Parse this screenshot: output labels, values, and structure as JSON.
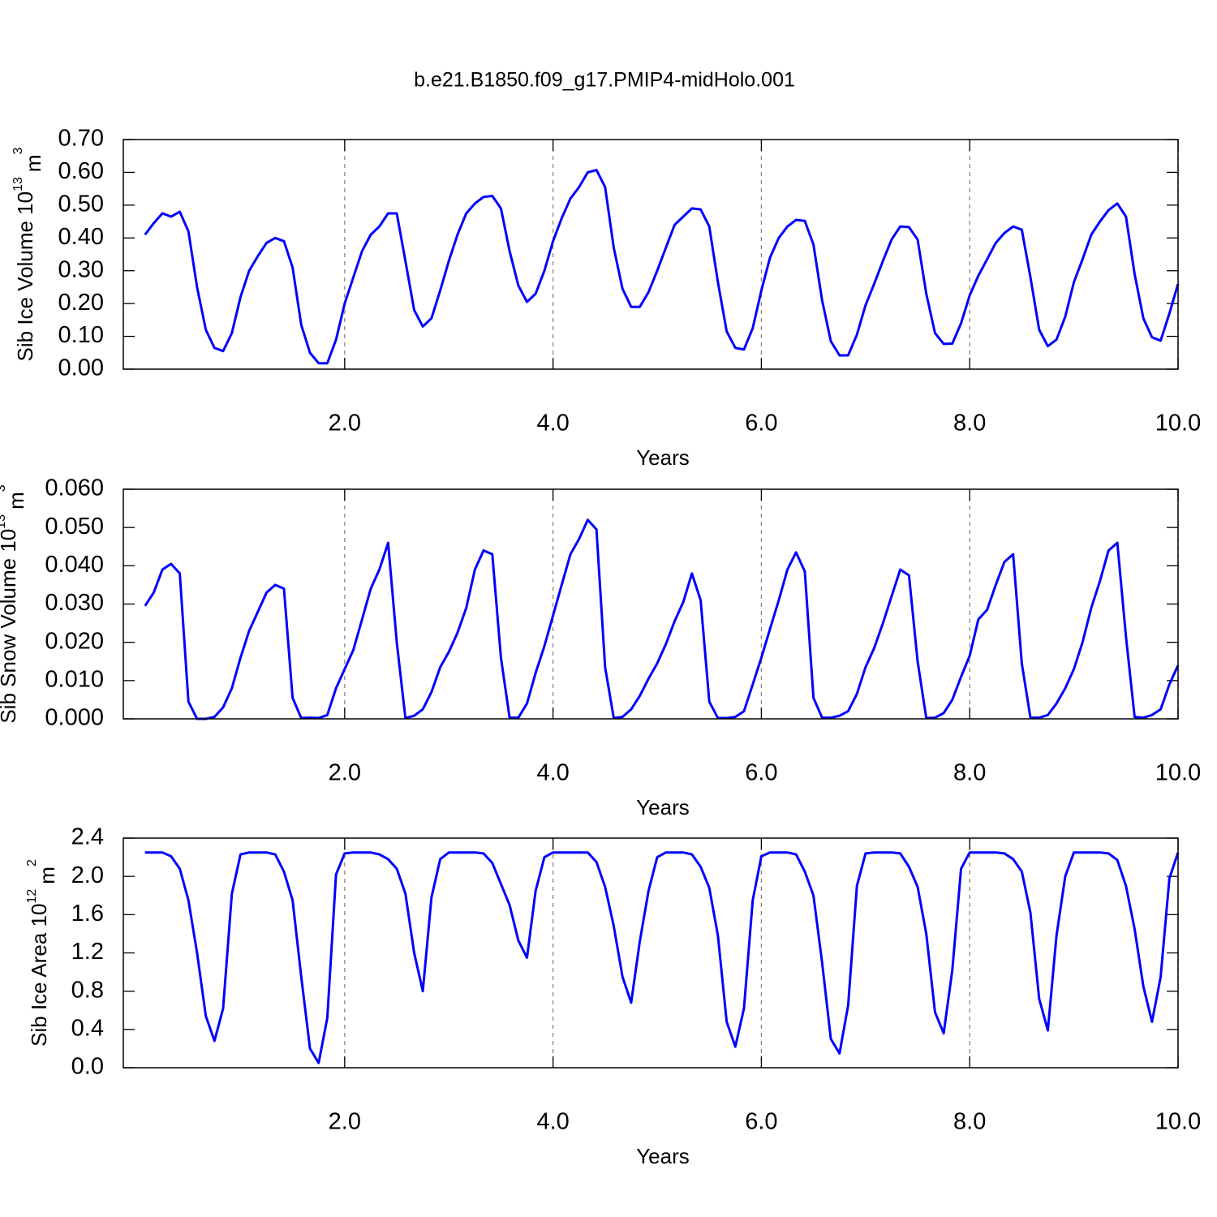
{
  "title": "b.e21.B1850.f09_g17.PMIP4-midHolo.001",
  "chart_data": [
    {
      "type": "line",
      "ylabel": "Sib Ice Volume 10",
      "ylabel_exponent": "13",
      "ylabel_unit": "m",
      "ylabel_unit_exponent": "3",
      "xlabel": "Years",
      "xlim": [
        -0.125,
        10
      ],
      "ylim": [
        0,
        0.7
      ],
      "xticks": [
        {
          "value": 2,
          "label": "2.0"
        },
        {
          "value": 4,
          "label": "4.0"
        },
        {
          "value": 6,
          "label": "6.0"
        },
        {
          "value": 8,
          "label": "8.0"
        },
        {
          "value": 10,
          "label": "10.0"
        }
      ],
      "yticks": [
        {
          "value": 0,
          "label": "0.00"
        },
        {
          "value": 0.1,
          "label": "0.10"
        },
        {
          "value": 0.2,
          "label": "0.20"
        },
        {
          "value": 0.3,
          "label": "0.30"
        },
        {
          "value": 0.4,
          "label": "0.40"
        },
        {
          "value": 0.5,
          "label": "0.50"
        },
        {
          "value": 0.6,
          "label": "0.60"
        },
        {
          "value": 0.7,
          "label": "0.70"
        }
      ],
      "grid": true,
      "x": [
        0.083,
        0.167,
        0.25,
        0.333,
        0.417,
        0.5,
        0.583,
        0.667,
        0.75,
        0.833,
        0.917,
        1,
        1.083,
        1.167,
        1.25,
        1.333,
        1.417,
        1.5,
        1.583,
        1.667,
        1.75,
        1.833,
        1.917,
        2,
        2.083,
        2.167,
        2.25,
        2.333,
        2.417,
        2.5,
        2.583,
        2.667,
        2.75,
        2.833,
        2.917,
        3,
        3.083,
        3.167,
        3.25,
        3.333,
        3.417,
        3.5,
        3.583,
        3.667,
        3.75,
        3.833,
        3.917,
        4,
        4.083,
        4.167,
        4.25,
        4.333,
        4.417,
        4.5,
        4.583,
        4.667,
        4.75,
        4.833,
        4.917,
        5,
        5.083,
        5.167,
        5.25,
        5.333,
        5.417,
        5.5,
        5.583,
        5.667,
        5.75,
        5.833,
        5.917,
        6,
        6.083,
        6.167,
        6.25,
        6.333,
        6.417,
        6.5,
        6.583,
        6.667,
        6.75,
        6.833,
        6.917,
        7,
        7.083,
        7.167,
        7.25,
        7.333,
        7.417,
        7.5,
        7.583,
        7.667,
        7.75,
        7.833,
        7.917,
        8,
        8.083,
        8.167,
        8.25,
        8.333,
        8.417,
        8.5,
        8.583,
        8.667,
        8.75,
        8.833,
        8.917,
        9,
        9.083,
        9.167,
        9.25,
        9.333,
        9.417,
        9.5,
        9.583,
        9.667,
        9.75,
        9.833,
        9.917,
        10
      ],
      "series": [
        {
          "color": "#0000ff",
          "values": [
            0.41,
            0.445,
            0.475,
            0.465,
            0.48,
            0.42,
            0.25,
            0.12,
            0.065,
            0.055,
            0.11,
            0.22,
            0.3,
            0.345,
            0.385,
            0.4,
            0.39,
            0.31,
            0.135,
            0.05,
            0.018,
            0.018,
            0.09,
            0.2,
            0.28,
            0.36,
            0.41,
            0.435,
            0.475,
            0.475,
            0.33,
            0.18,
            0.13,
            0.155,
            0.24,
            0.33,
            0.41,
            0.475,
            0.505,
            0.525,
            0.528,
            0.49,
            0.36,
            0.255,
            0.205,
            0.23,
            0.3,
            0.39,
            0.46,
            0.52,
            0.555,
            0.6,
            0.607,
            0.555,
            0.37,
            0.245,
            0.19,
            0.19,
            0.235,
            0.3,
            0.37,
            0.44,
            0.465,
            0.49,
            0.487,
            0.435,
            0.265,
            0.115,
            0.065,
            0.06,
            0.125,
            0.24,
            0.34,
            0.4,
            0.435,
            0.455,
            0.452,
            0.38,
            0.21,
            0.085,
            0.042,
            0.042,
            0.105,
            0.195,
            0.26,
            0.33,
            0.395,
            0.435,
            0.433,
            0.395,
            0.23,
            0.11,
            0.077,
            0.078,
            0.14,
            0.225,
            0.285,
            0.335,
            0.385,
            0.415,
            0.435,
            0.425,
            0.28,
            0.12,
            0.07,
            0.09,
            0.16,
            0.265,
            0.335,
            0.41,
            0.45,
            0.485,
            0.505,
            0.465,
            0.29,
            0.155,
            0.097,
            0.087,
            0.17,
            0.26
          ]
        }
      ]
    },
    {
      "type": "line",
      "ylabel": "Sib Snow Volume 10",
      "ylabel_exponent": "13",
      "ylabel_unit": "m",
      "ylabel_unit_exponent": "3",
      "xlabel": "Years",
      "xlim": [
        -0.125,
        10
      ],
      "ylim": [
        0,
        0.06
      ],
      "xticks": [
        {
          "value": 2,
          "label": "2.0"
        },
        {
          "value": 4,
          "label": "4.0"
        },
        {
          "value": 6,
          "label": "6.0"
        },
        {
          "value": 8,
          "label": "8.0"
        },
        {
          "value": 10,
          "label": "10.0"
        }
      ],
      "yticks": [
        {
          "value": 0,
          "label": "0.000"
        },
        {
          "value": 0.01,
          "label": "0.010"
        },
        {
          "value": 0.02,
          "label": "0.020"
        },
        {
          "value": 0.03,
          "label": "0.030"
        },
        {
          "value": 0.04,
          "label": "0.040"
        },
        {
          "value": 0.05,
          "label": "0.050"
        },
        {
          "value": 0.06,
          "label": "0.060"
        }
      ],
      "grid": true,
      "x": [
        0.083,
        0.167,
        0.25,
        0.333,
        0.417,
        0.5,
        0.583,
        0.667,
        0.75,
        0.833,
        0.917,
        1,
        1.083,
        1.167,
        1.25,
        1.333,
        1.417,
        1.5,
        1.583,
        1.667,
        1.75,
        1.833,
        1.917,
        2,
        2.083,
        2.167,
        2.25,
        2.333,
        2.417,
        2.5,
        2.583,
        2.667,
        2.75,
        2.833,
        2.917,
        3,
        3.083,
        3.167,
        3.25,
        3.333,
        3.417,
        3.5,
        3.583,
        3.667,
        3.75,
        3.833,
        3.917,
        4,
        4.083,
        4.167,
        4.25,
        4.333,
        4.417,
        4.5,
        4.583,
        4.667,
        4.75,
        4.833,
        4.917,
        5,
        5.083,
        5.167,
        5.25,
        5.333,
        5.417,
        5.5,
        5.583,
        5.667,
        5.75,
        5.833,
        5.917,
        6,
        6.083,
        6.167,
        6.25,
        6.333,
        6.417,
        6.5,
        6.583,
        6.667,
        6.75,
        6.833,
        6.917,
        7,
        7.083,
        7.167,
        7.25,
        7.333,
        7.417,
        7.5,
        7.583,
        7.667,
        7.75,
        7.833,
        7.917,
        8,
        8.083,
        8.167,
        8.25,
        8.333,
        8.417,
        8.5,
        8.583,
        8.667,
        8.75,
        8.833,
        8.917,
        9,
        9.083,
        9.167,
        9.25,
        9.333,
        9.417,
        9.5,
        9.583,
        9.667,
        9.75,
        9.833,
        9.917,
        10
      ],
      "series": [
        {
          "color": "#0000ff",
          "values": [
            0.0295,
            0.033,
            0.039,
            0.0405,
            0.038,
            0.0045,
            0,
            0,
            0.0005,
            0.003,
            0.008,
            0.016,
            0.023,
            0.028,
            0.033,
            0.035,
            0.034,
            0.0055,
            0.0002,
            0.0003,
            0.0002,
            0.001,
            0.008,
            0.013,
            0.018,
            0.026,
            0.034,
            0.039,
            0.046,
            0.02,
            0.0002,
            0.0008,
            0.0025,
            0.007,
            0.0135,
            0.0175,
            0.0225,
            0.029,
            0.039,
            0.044,
            0.043,
            0.016,
            0.0003,
            0.0003,
            0.004,
            0.012,
            0.019,
            0.027,
            0.035,
            0.043,
            0.047,
            0.052,
            0.0495,
            0.0135,
            0.0002,
            0.0005,
            0.0025,
            0.006,
            0.0105,
            0.0145,
            0.0195,
            0.0255,
            0.0305,
            0.038,
            0.031,
            0.0045,
            0.0002,
            0.0002,
            0.0005,
            0.002,
            0.009,
            0.016,
            0.0235,
            0.031,
            0.039,
            0.0435,
            0.0385,
            0.0055,
            0.0003,
            0.0003,
            0.0008,
            0.002,
            0.0065,
            0.0135,
            0.0185,
            0.025,
            0.032,
            0.039,
            0.0375,
            0.015,
            0.0002,
            0.0003,
            0.0015,
            0.005,
            0.011,
            0.0165,
            0.026,
            0.0285,
            0.035,
            0.041,
            0.043,
            0.0145,
            0.0003,
            0.0003,
            0.001,
            0.004,
            0.008,
            0.013,
            0.02,
            0.029,
            0.036,
            0.044,
            0.046,
            0.0215,
            0.0005,
            0.0003,
            0.001,
            0.0025,
            0.009,
            0.014
          ]
        }
      ]
    },
    {
      "type": "line",
      "ylabel": "Sib Ice Area 10",
      "ylabel_exponent": "12",
      "ylabel_unit": "m",
      "ylabel_unit_exponent": "2",
      "xlabel": "Years",
      "xlim": [
        -0.125,
        10
      ],
      "ylim": [
        0,
        2.4
      ],
      "xticks": [
        {
          "value": 2,
          "label": "2.0"
        },
        {
          "value": 4,
          "label": "4.0"
        },
        {
          "value": 6,
          "label": "6.0"
        },
        {
          "value": 8,
          "label": "8.0"
        },
        {
          "value": 10,
          "label": "10.0"
        }
      ],
      "yticks": [
        {
          "value": 0,
          "label": "0.0"
        },
        0.4,
        0.8,
        1.2,
        1.6,
        {
          "value": 2,
          "label": "2.0"
        },
        2.4
      ],
      "grid": true,
      "x": [
        0.083,
        0.167,
        0.25,
        0.333,
        0.417,
        0.5,
        0.583,
        0.667,
        0.75,
        0.833,
        0.917,
        1,
        1.083,
        1.167,
        1.25,
        1.333,
        1.417,
        1.5,
        1.583,
        1.667,
        1.75,
        1.833,
        1.917,
        2,
        2.083,
        2.167,
        2.25,
        2.333,
        2.417,
        2.5,
        2.583,
        2.667,
        2.75,
        2.833,
        2.917,
        3,
        3.083,
        3.167,
        3.25,
        3.333,
        3.417,
        3.5,
        3.583,
        3.667,
        3.75,
        3.833,
        3.917,
        4,
        4.083,
        4.167,
        4.25,
        4.333,
        4.417,
        4.5,
        4.583,
        4.667,
        4.75,
        4.833,
        4.917,
        5,
        5.083,
        5.167,
        5.25,
        5.333,
        5.417,
        5.5,
        5.583,
        5.667,
        5.75,
        5.833,
        5.917,
        6,
        6.083,
        6.167,
        6.25,
        6.333,
        6.417,
        6.5,
        6.583,
        6.667,
        6.75,
        6.833,
        6.917,
        7,
        7.083,
        7.167,
        7.25,
        7.333,
        7.417,
        7.5,
        7.583,
        7.667,
        7.75,
        7.833,
        7.917,
        8,
        8.083,
        8.167,
        8.25,
        8.333,
        8.417,
        8.5,
        8.583,
        8.667,
        8.75,
        8.833,
        8.917,
        9,
        9.083,
        9.167,
        9.25,
        9.333,
        9.417,
        9.5,
        9.583,
        9.667,
        9.75,
        9.833,
        9.917,
        10
      ],
      "series": [
        {
          "color": "#0000ff",
          "values": [
            2.25,
            2.25,
            2.25,
            2.21,
            2.08,
            1.75,
            1.2,
            0.54,
            0.28,
            0.62,
            1.82,
            2.23,
            2.25,
            2.25,
            2.25,
            2.23,
            2.05,
            1.75,
            0.95,
            0.2,
            0.05,
            0.52,
            2.02,
            2.24,
            2.25,
            2.25,
            2.25,
            2.23,
            2.18,
            2.08,
            1.82,
            1.2,
            0.8,
            1.78,
            2.18,
            2.25,
            2.25,
            2.25,
            2.25,
            2.24,
            2.14,
            1.92,
            1.7,
            1.33,
            1.15,
            1.85,
            2.2,
            2.25,
            2.25,
            2.25,
            2.25,
            2.25,
            2.15,
            1.89,
            1.48,
            0.95,
            0.68,
            1.32,
            1.85,
            2.2,
            2.25,
            2.25,
            2.25,
            2.23,
            2.1,
            1.88,
            1.38,
            0.48,
            0.22,
            0.62,
            1.75,
            2.21,
            2.25,
            2.25,
            2.25,
            2.23,
            2.05,
            1.8,
            1.1,
            0.3,
            0.15,
            0.65,
            1.9,
            2.24,
            2.25,
            2.25,
            2.25,
            2.24,
            2.1,
            1.89,
            1.4,
            0.58,
            0.36,
            1.02,
            2.08,
            2.25,
            2.25,
            2.25,
            2.25,
            2.24,
            2.18,
            2.05,
            1.62,
            0.72,
            0.39,
            1.38,
            2.0,
            2.25,
            2.25,
            2.25,
            2.25,
            2.24,
            2.17,
            1.9,
            1.45,
            0.85,
            0.48,
            0.95,
            1.98,
            2.25
          ]
        }
      ]
    }
  ]
}
